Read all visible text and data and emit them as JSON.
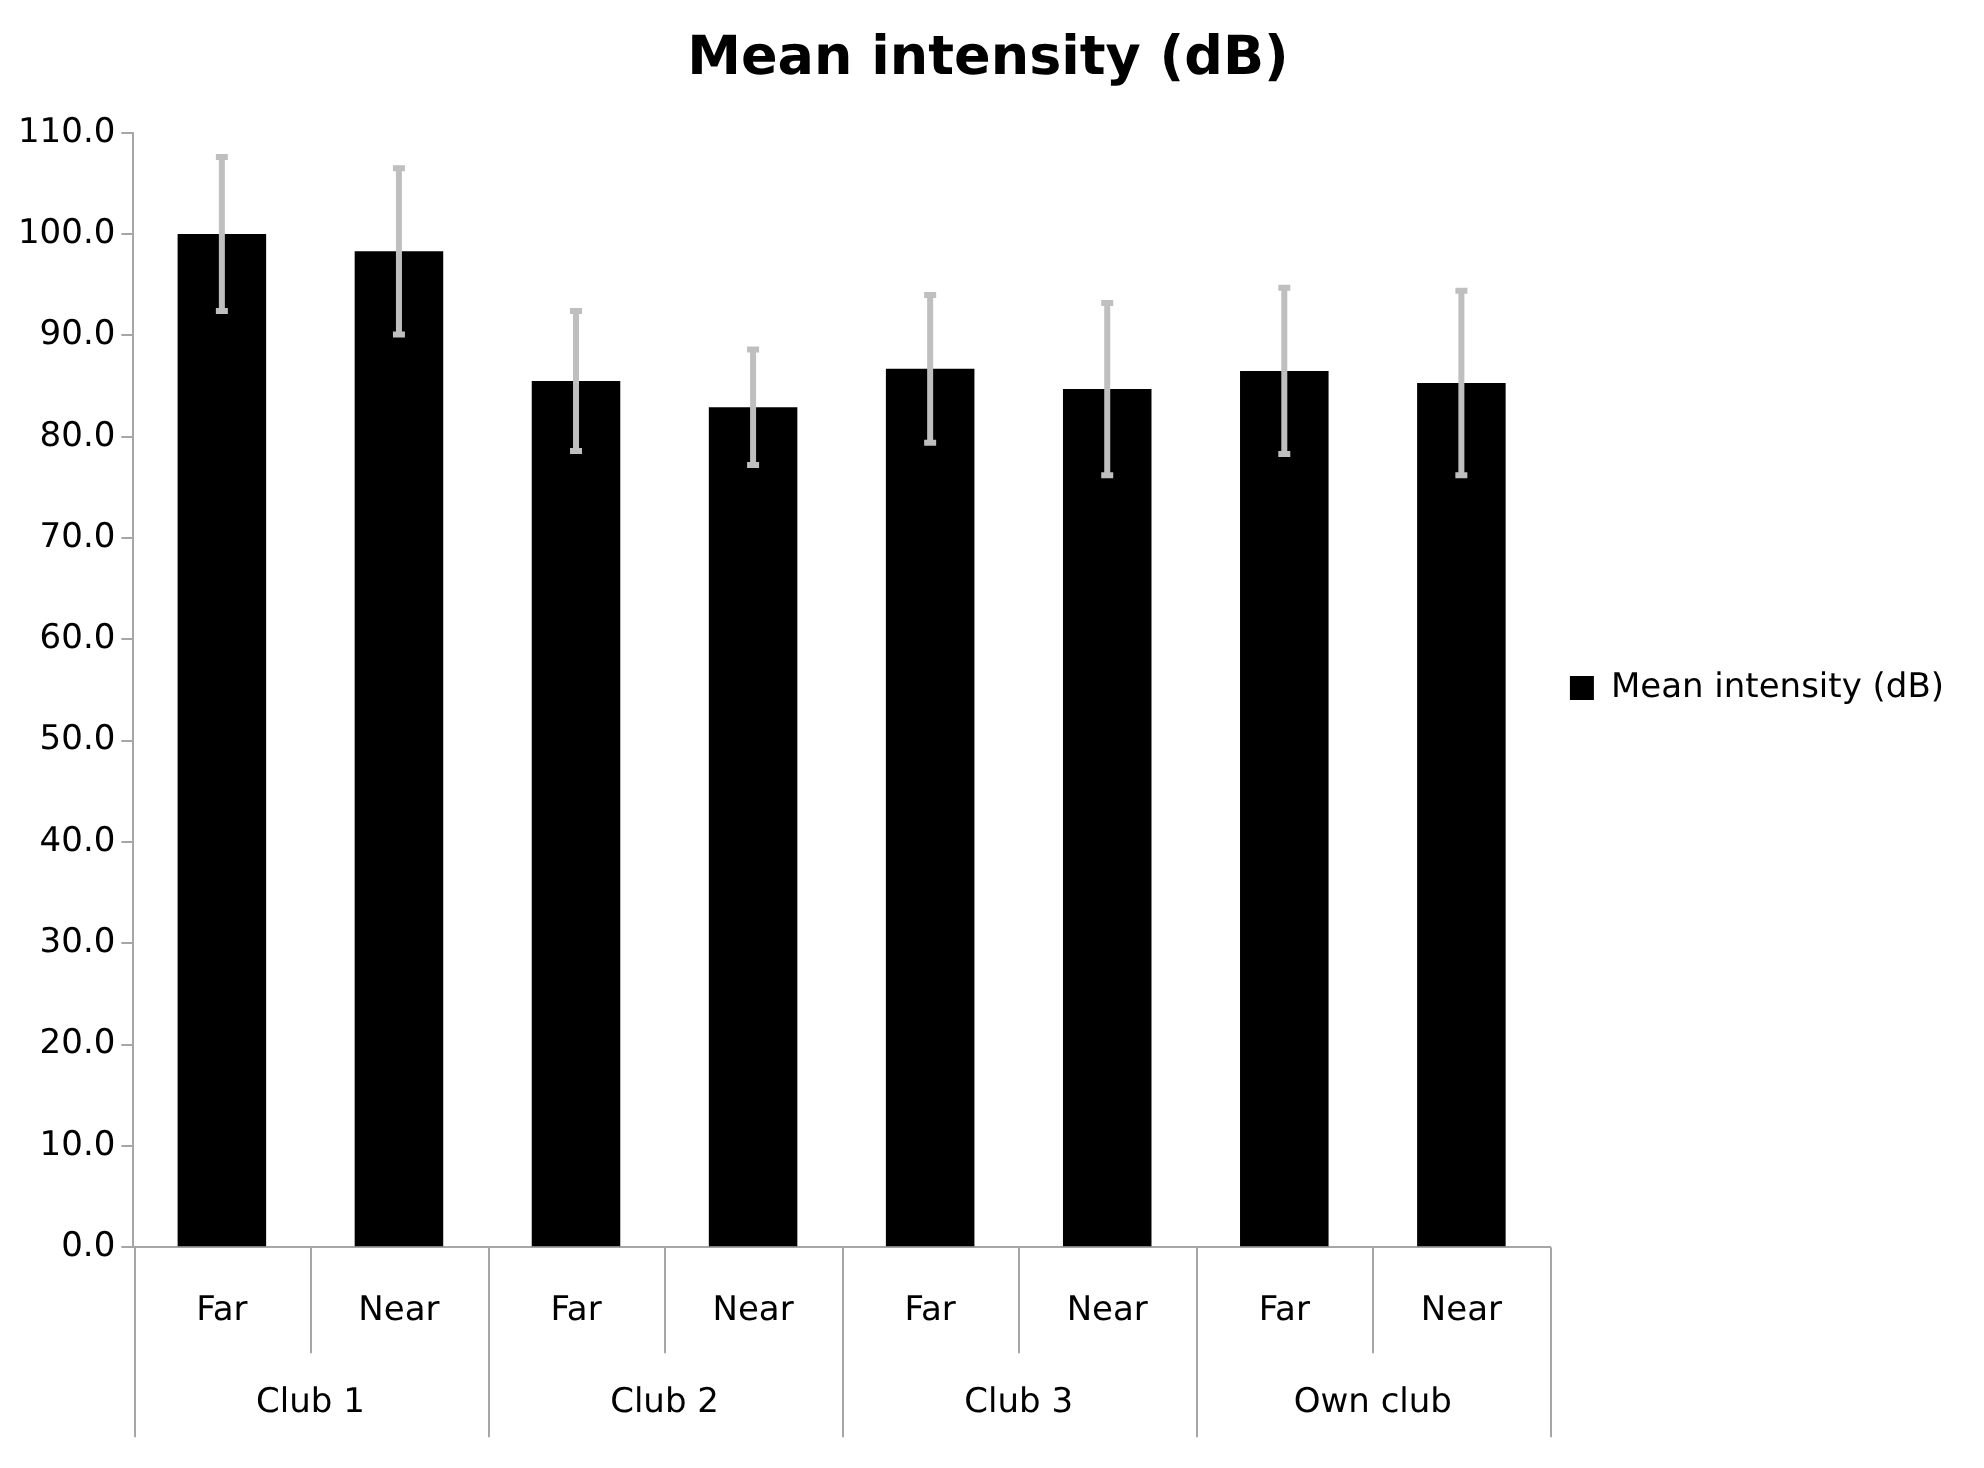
{
  "chart_data": {
    "type": "bar",
    "title": "Mean intensity (dB)",
    "categories": [
      "Far",
      "Near",
      "Far",
      "Near",
      "Far",
      "Near",
      "Far",
      "Near"
    ],
    "series": [
      {
        "name": "Mean intensity (dB)",
        "color": "#000000",
        "values": [
          100.0,
          98.3,
          85.5,
          82.9,
          86.7,
          84.7,
          86.5,
          85.3
        ],
        "errors": [
          7.6,
          8.2,
          6.9,
          5.7,
          7.3,
          8.5,
          8.2,
          9.1
        ]
      }
    ],
    "annotations": [
      "Club 1",
      "Club 2",
      "Club 3",
      "Own club"
    ],
    "ylim": [
      0,
      110
    ],
    "yticks": [
      {
        "value": 0,
        "label": "0.0"
      },
      {
        "value": 10,
        "label": "10.0"
      },
      {
        "value": 20,
        "label": "20.0"
      },
      {
        "value": 30,
        "label": "30.0"
      },
      {
        "value": 40,
        "label": "40.0"
      },
      {
        "value": 50,
        "label": "50.0"
      },
      {
        "value": 60,
        "label": "60.0"
      },
      {
        "value": 70,
        "label": "70.0"
      },
      {
        "value": 80,
        "label": "80.0"
      },
      {
        "value": 90,
        "label": "90.0"
      },
      {
        "value": 100,
        "label": "100.0"
      },
      {
        "value": 110,
        "label": "110.0"
      }
    ],
    "legend": "right",
    "grid": false
  }
}
